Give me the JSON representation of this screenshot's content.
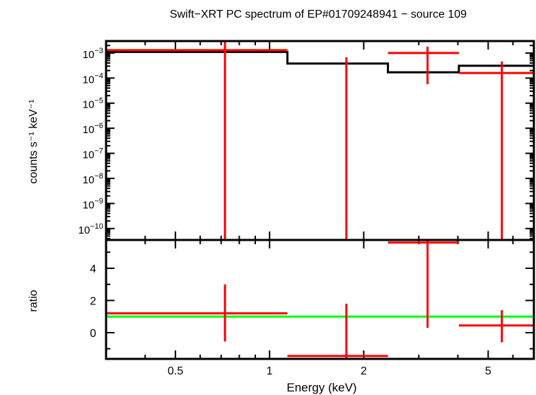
{
  "chart_data": {
    "type": "scatter",
    "title": "Swift−XRT PC spectrum of EP#01709248941 − source 109",
    "xlabel": "Energy (keV)",
    "x_scale": "log",
    "xlim": [
      0.3,
      7.0
    ],
    "x_ticks": [
      {
        "v": 0.5,
        "label": "0.5"
      },
      {
        "v": 1,
        "label": "1"
      },
      {
        "v": 2,
        "label": "2"
      },
      {
        "v": 5,
        "label": "5"
      }
    ],
    "colors": {
      "data": "#ff0000",
      "model": "#000000",
      "unity": "#00ff00",
      "axes": "#000000"
    },
    "grid": false,
    "panels": [
      {
        "name": "spectrum",
        "ylabel": "counts s⁻¹ keV⁻¹",
        "y_scale": "log",
        "ylim": [
          3.5e-11,
          0.003
        ],
        "y_ticks": [
          {
            "exp": -3,
            "label": "10",
            "sup": "−3"
          },
          {
            "exp": -4,
            "label": "10",
            "sup": "−4"
          },
          {
            "exp": -5,
            "label": "10",
            "sup": "−5"
          },
          {
            "exp": -6,
            "label": "10",
            "sup": "−6"
          },
          {
            "exp": -7,
            "label": "10",
            "sup": "−7"
          },
          {
            "exp": -8,
            "label": "10",
            "sup": "−8"
          },
          {
            "exp": -9,
            "label": "10",
            "sup": "−9"
          },
          {
            "exp": -10,
            "label": "10",
            "sup": "−10"
          }
        ],
        "data": [
          {
            "x_lo": 0.3,
            "x_hi": 1.14,
            "x": 0.72,
            "y": 0.0013,
            "y_lo": 1e-12,
            "y_hi": 0.01
          },
          {
            "x_lo": 1.14,
            "x_hi": 2.39,
            "x": 1.76,
            "y": null,
            "y_lo": 1e-12,
            "y_hi": 0.00068
          },
          {
            "x_lo": 2.39,
            "x_hi": 4.03,
            "x": 3.2,
            "y": 0.001,
            "y_lo": 5.7e-05,
            "y_hi": 0.0018
          },
          {
            "x_lo": 4.03,
            "x_hi": 7.0,
            "x": 5.53,
            "y": 0.00016,
            "y_lo": 1e-12,
            "y_hi": 0.00046
          }
        ],
        "model": [
          {
            "x_lo": 0.3,
            "x_hi": 1.14,
            "y": 0.0011
          },
          {
            "x_lo": 1.14,
            "x_hi": 2.39,
            "y": 0.00038
          },
          {
            "x_lo": 2.39,
            "x_hi": 4.03,
            "y": 0.00017
          },
          {
            "x_lo": 4.03,
            "x_hi": 7.0,
            "y": 0.00031
          }
        ]
      },
      {
        "name": "ratio",
        "ylabel": "ratio",
        "y_scale": "linear",
        "ylim": [
          -1.63,
          5.76
        ],
        "y_ticks": [
          {
            "v": 0,
            "label": "0"
          },
          {
            "v": 2,
            "label": "2"
          },
          {
            "v": 4,
            "label": "4"
          }
        ],
        "unity_line": 1,
        "data": [
          {
            "x_lo": 0.3,
            "x_hi": 1.14,
            "x": 0.72,
            "y": 1.2,
            "y_lo": -0.55,
            "y_hi": 3.0
          },
          {
            "x_lo": 1.14,
            "x_hi": 2.39,
            "x": 1.76,
            "y": -1.45,
            "y_lo": -1.7,
            "y_hi": 1.8
          },
          {
            "x_lo": 2.39,
            "x_hi": 4.03,
            "x": 3.2,
            "y": 5.6,
            "y_lo": 0.3,
            "y_hi": 6.0
          },
          {
            "x_lo": 4.03,
            "x_hi": 7.0,
            "x": 5.53,
            "y": 0.45,
            "y_lo": -0.6,
            "y_hi": 1.4
          }
        ]
      }
    ]
  }
}
